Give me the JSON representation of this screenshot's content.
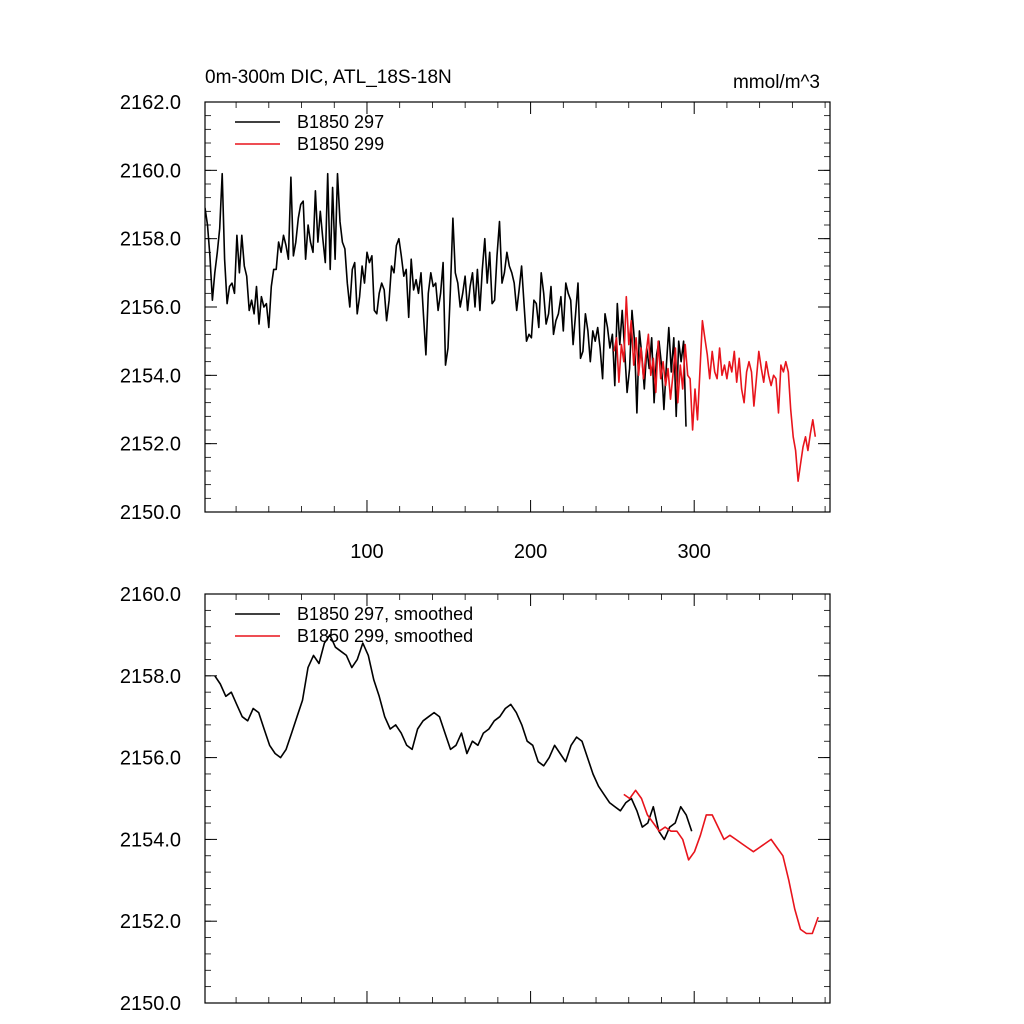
{
  "chart_data": [
    {
      "type": "line",
      "title": "0m-300m DIC, ATL_18S-18N",
      "units": "mmol/m^3",
      "xlim": [
        1,
        383
      ],
      "ylim": [
        2150,
        2162
      ],
      "xticks": [
        100,
        200,
        300
      ],
      "xtick_labels": [
        "100",
        "200",
        "300"
      ],
      "yticks": [
        2150,
        2152,
        2154,
        2156,
        2158,
        2160,
        2162
      ],
      "ytick_labels": [
        "2150.0",
        "2152.0",
        "2154.0",
        "2156.0",
        "2158.0",
        "2160.0",
        "2162.0"
      ],
      "legend_position": "top-left",
      "series": [
        {
          "name": "B1850 297",
          "color": "#000000",
          "x_start": 1,
          "values": [
            2158.9,
            2158.4,
            2157.5,
            2156.2,
            2157.0,
            2157.6,
            2158.3,
            2159.9,
            2157.4,
            2156.1,
            2156.6,
            2156.7,
            2156.4,
            2158.1,
            2157.0,
            2158.1,
            2157.2,
            2156.9,
            2155.9,
            2156.2,
            2155.8,
            2156.6,
            2155.5,
            2156.3,
            2156.0,
            2156.1,
            2155.4,
            2156.6,
            2157.1,
            2157.1,
            2157.9,
            2157.6,
            2158.1,
            2157.8,
            2157.4,
            2159.8,
            2157.5,
            2157.9,
            2158.6,
            2159.0,
            2159.1,
            2157.4,
            2158.4,
            2157.9,
            2157.6,
            2159.4,
            2157.9,
            2158.8,
            2158.0,
            2157.3,
            2159.9,
            2157.1,
            2159.5,
            2157.4,
            2159.9,
            2158.5,
            2157.9,
            2157.7,
            2156.7,
            2156.0,
            2157.1,
            2157.3,
            2155.8,
            2156.3,
            2157.2,
            2156.7,
            2157.6,
            2157.3,
            2157.5,
            2155.9,
            2155.8,
            2156.4,
            2156.7,
            2156.5,
            2155.6,
            2156.2,
            2157.2,
            2157.0,
            2157.8,
            2158.0,
            2157.5,
            2156.9,
            2157.1,
            2155.7,
            2157.4,
            2156.5,
            2156.8,
            2156.4,
            2157.0,
            2155.8,
            2154.6,
            2156.4,
            2157.0,
            2156.6,
            2156.7,
            2155.9,
            2156.4,
            2157.3,
            2154.3,
            2154.8,
            2156.5,
            2158.6,
            2157.0,
            2156.7,
            2156.0,
            2156.4,
            2156.9,
            2155.9,
            2156.6,
            2157.0,
            2156.0,
            2157.1,
            2155.9,
            2157.1,
            2158.0,
            2156.7,
            2157.6,
            2156.1,
            2156.2,
            2157.5,
            2158.5,
            2156.7,
            2157.0,
            2157.6,
            2157.2,
            2157.0,
            2156.7,
            2155.9,
            2156.5,
            2157.2,
            2156.1,
            2155.0,
            2155.2,
            2155.1,
            2156.2,
            2156.1,
            2155.4,
            2157.0,
            2156.4,
            2155.5,
            2155.8,
            2156.6,
            2155.2,
            2155.6,
            2155.8,
            2156.3,
            2155.3,
            2156.7,
            2156.4,
            2156.2,
            2154.9,
            2155.8,
            2156.7,
            2154.5,
            2154.7,
            2155.8,
            2155.3,
            2154.4,
            2155.3,
            2155.0,
            2155.4,
            2154.8,
            2153.9,
            2155.8,
            2155.4,
            2154.8,
            2155.2,
            2153.7,
            2156.1,
            2154.9,
            2155.9,
            2154.7,
            2153.5,
            2154.2,
            2155.9,
            2155.0,
            2152.9,
            2155.3,
            2154.6,
            2153.6,
            2154.8,
            2154.2,
            2155.1,
            2153.2,
            2154.6,
            2155.0,
            2154.3,
            2153.0,
            2154.3,
            2155.4,
            2154.1,
            2155.1,
            2152.8,
            2155.0,
            2154.4,
            2155.0,
            2152.5
          ],
          "note": "values listed for x = 1..~308 at ~1.5-unit spacing"
        },
        {
          "name": "B1850 299",
          "color": "#e8141c",
          "x_start": 251,
          "values": [
            2154.7,
            2155.1,
            2153.8,
            2154.9,
            2154.4,
            2156.3,
            2154.9,
            2155.6,
            2154.3,
            2155.1,
            2154.0,
            2154.8,
            2153.9,
            2154.6,
            2155.2,
            2154.0,
            2154.5,
            2153.5,
            2155.0,
            2153.9,
            2154.4,
            2153.7,
            2154.2,
            2153.3,
            2154.0,
            2154.8,
            2153.2,
            2154.3,
            2153.6,
            2154.9,
            2154.0,
            2153.9,
            2152.4,
            2153.6,
            2152.7,
            2154.1,
            2155.6,
            2155.1,
            2154.6,
            2153.9,
            2154.7,
            2154.1,
            2153.9,
            2154.8,
            2154.0,
            2154.3,
            2153.9,
            2154.4,
            2154.1,
            2154.7,
            2153.8,
            2154.5,
            2153.6,
            2153.2,
            2154.1,
            2154.4,
            2154.1,
            2153.1,
            2153.9,
            2154.7,
            2154.2,
            2153.8,
            2154.4,
            2154.0,
            2153.7,
            2154.0,
            2153.9,
            2152.9,
            2154.3,
            2154.1,
            2154.4,
            2154.1,
            2153.0,
            2152.2,
            2151.8,
            2150.9,
            2151.4,
            2151.9,
            2152.2,
            2151.8,
            2152.3,
            2152.7,
            2152.2
          ],
          "note": "values for x = 251..~383"
        }
      ]
    },
    {
      "type": "line",
      "xlim": [
        1,
        383
      ],
      "ylim": [
        2150,
        2160
      ],
      "xticks": [
        100,
        200,
        300
      ],
      "yticks": [
        2150,
        2152,
        2154,
        2156,
        2158,
        2160
      ],
      "ytick_labels": [
        "2150.0",
        "2152.0",
        "2154.0",
        "2156.0",
        "2158.0",
        "2160.0"
      ],
      "legend_position": "top-left",
      "series": [
        {
          "name": "B1850 297, smoothed",
          "color": "#000000",
          "x_start": 7,
          "values": [
            2158.0,
            2157.8,
            2157.5,
            2157.6,
            2157.3,
            2157.0,
            2156.9,
            2157.2,
            2157.1,
            2156.7,
            2156.3,
            2156.1,
            2156.0,
            2156.2,
            2156.6,
            2157.0,
            2157.4,
            2158.2,
            2158.5,
            2158.3,
            2158.8,
            2159.0,
            2158.7,
            2158.6,
            2158.5,
            2158.2,
            2158.4,
            2158.8,
            2158.5,
            2157.9,
            2157.5,
            2157.0,
            2156.7,
            2156.8,
            2156.6,
            2156.3,
            2156.2,
            2156.7,
            2156.9,
            2157.0,
            2157.1,
            2157.0,
            2156.6,
            2156.2,
            2156.3,
            2156.6,
            2156.1,
            2156.4,
            2156.3,
            2156.6,
            2156.7,
            2156.9,
            2157.0,
            2157.2,
            2157.3,
            2157.1,
            2156.8,
            2156.4,
            2156.3,
            2155.9,
            2155.8,
            2156.0,
            2156.3,
            2156.1,
            2155.9,
            2156.3,
            2156.5,
            2156.4,
            2156.0,
            2155.6,
            2155.3,
            2155.1,
            2154.9,
            2154.8,
            2154.7,
            2154.9,
            2155.0,
            2154.7,
            2154.3,
            2154.4,
            2154.8,
            2154.2,
            2154.0,
            2154.3,
            2154.4,
            2154.8,
            2154.6,
            2154.2
          ],
          "note": "x ≈ 7..~305"
        },
        {
          "name": "B1850 299, smoothed",
          "color": "#e8141c",
          "x_start": 257,
          "values": [
            2155.1,
            2155.0,
            2155.2,
            2155.0,
            2154.6,
            2154.4,
            2154.2,
            2154.3,
            2154.2,
            2154.2,
            2154.0,
            2153.5,
            2153.7,
            2154.1,
            2154.6,
            2154.6,
            2154.3,
            2154.0,
            2154.1,
            2154.0,
            2153.9,
            2153.8,
            2153.7,
            2153.8,
            2153.9,
            2154.0,
            2153.8,
            2153.6,
            2153.0,
            2152.3,
            2151.8,
            2151.7,
            2151.7,
            2152.1
          ],
          "note": "x ≈ 257..~377"
        }
      ]
    }
  ]
}
